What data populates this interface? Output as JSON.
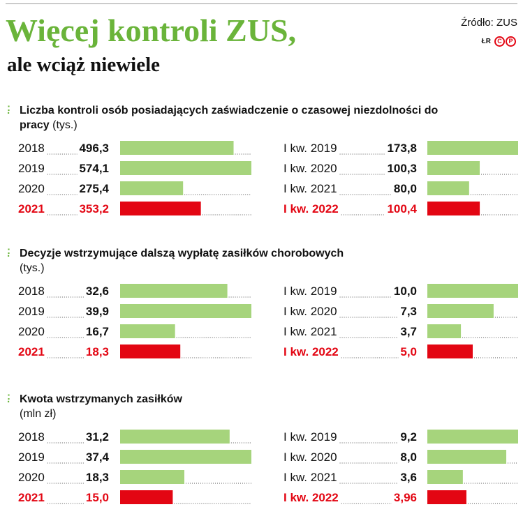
{
  "header": {
    "title": "Więcej kontroli ZUS,",
    "subtitle": "ale wciąż niewiele",
    "source": "Źródło: ZUS",
    "credit_initials": "ŁR",
    "brand_color": "#6ab43a",
    "highlight_color": "#e30613",
    "bar_color": "#a6d47c"
  },
  "chart_data": [
    {
      "type": "bar",
      "orientation": "horizontal",
      "title": "Liczba kontroli osób posiadających zaświadczenie o czasowej niezdolności do pracy",
      "unit": "(tys.)",
      "groups": [
        {
          "categories": [
            "2018",
            "2019",
            "2020",
            "2021"
          ],
          "values": [
            496.3,
            574.1,
            275.4,
            353.2
          ],
          "labels": [
            "496,3",
            "574,1",
            "275,4",
            "353,2"
          ],
          "highlight_index": 3
        },
        {
          "categories": [
            "I kw. 2019",
            "I kw. 2020",
            "I kw. 2021",
            "I kw. 2022"
          ],
          "values": [
            173.8,
            100.3,
            80.0,
            100.4
          ],
          "labels": [
            "173,8",
            "100,3",
            "80,0",
            "100,4"
          ],
          "highlight_index": 3
        }
      ]
    },
    {
      "type": "bar",
      "orientation": "horizontal",
      "title": "Decyzje wstrzymujące dalszą wypłatę zasiłków chorobowych",
      "unit": "(tys.)",
      "groups": [
        {
          "categories": [
            "2018",
            "2019",
            "2020",
            "2021"
          ],
          "values": [
            32.6,
            39.9,
            16.7,
            18.3
          ],
          "labels": [
            "32,6",
            "39,9",
            "16,7",
            "18,3"
          ],
          "highlight_index": 3
        },
        {
          "categories": [
            "I kw. 2019",
            "I kw. 2020",
            "I kw. 2021",
            "I kw. 2022"
          ],
          "values": [
            10.0,
            7.3,
            3.7,
            5.0
          ],
          "labels": [
            "10,0",
            "7,3",
            "3,7",
            "5,0"
          ],
          "highlight_index": 3
        }
      ]
    },
    {
      "type": "bar",
      "orientation": "horizontal",
      "title": "Kwota wstrzymanych zasiłków",
      "unit": "(mln zł)",
      "groups": [
        {
          "categories": [
            "2018",
            "2019",
            "2020",
            "2021"
          ],
          "values": [
            31.2,
            37.4,
            18.3,
            15.0
          ],
          "labels": [
            "31,2",
            "37,4",
            "18,3",
            "15,0"
          ],
          "highlight_index": 3
        },
        {
          "categories": [
            "I kw. 2019",
            "I kw. 2020",
            "I kw. 2021",
            "I kw. 2022"
          ],
          "values": [
            9.2,
            8.0,
            3.6,
            3.96
          ],
          "labels": [
            "9,2",
            "8,0",
            "3,6",
            "3,96"
          ],
          "highlight_index": 3
        }
      ]
    }
  ]
}
